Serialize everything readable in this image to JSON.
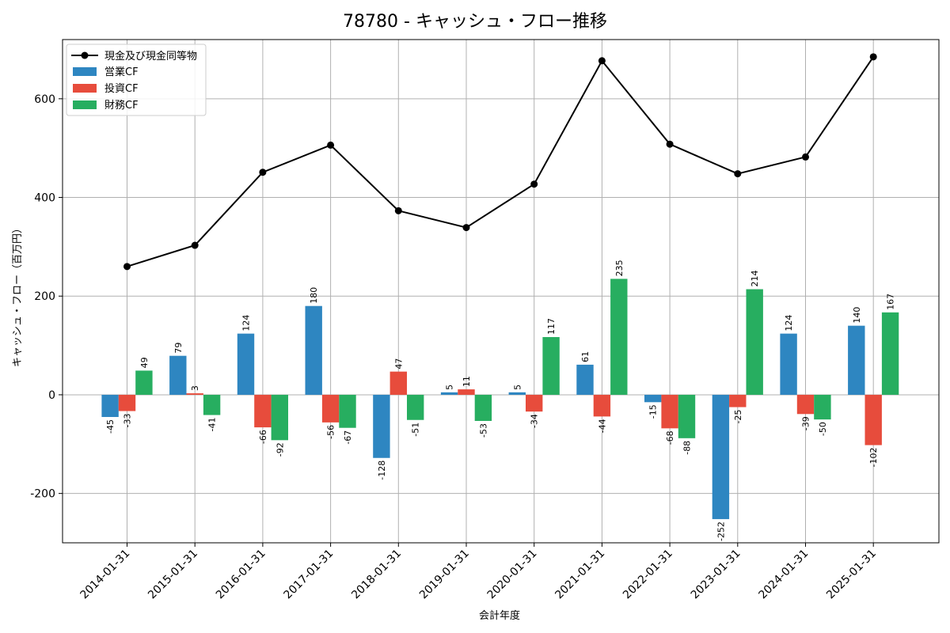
{
  "title": "78780 - キャッシュ・フロー推移",
  "colors": {
    "operating": "#2e86c1",
    "investing": "#e74c3c",
    "financing": "#27ae60",
    "cash": "#000000"
  },
  "chart_data": {
    "type": "bar",
    "title": "78780 - キャッシュ・フロー推移",
    "xlabel": "会計年度",
    "ylabel": "キャッシュ・フロー（百万円）",
    "ylim": [
      -300,
      720
    ],
    "yticks": [
      -200,
      0,
      200,
      400,
      600
    ],
    "grid": true,
    "legend_position": "top-left",
    "categories": [
      "2014-01-31",
      "2015-01-31",
      "2016-01-31",
      "2017-01-31",
      "2018-01-31",
      "2019-01-31",
      "2020-01-31",
      "2021-01-31",
      "2022-01-31",
      "2023-01-31",
      "2024-01-31",
      "2025-01-31"
    ],
    "series": [
      {
        "name": "営業CF",
        "type": "bar",
        "color": "#2e86c1",
        "values": [
          -45,
          79,
          124,
          180,
          -128,
          5,
          5,
          61,
          -15,
          -252,
          124,
          140
        ]
      },
      {
        "name": "投資CF",
        "type": "bar",
        "color": "#e74c3c",
        "values": [
          -33,
          3,
          -66,
          -56,
          47,
          11,
          -34,
          -44,
          -68,
          -25,
          -39,
          -102
        ]
      },
      {
        "name": "財務CF",
        "type": "bar",
        "color": "#27ae60",
        "values": [
          49,
          -41,
          -92,
          -67,
          -51,
          -53,
          117,
          235,
          -88,
          214,
          -50,
          167
        ]
      },
      {
        "name": "現金及び現金同等物",
        "type": "line",
        "color": "#000000",
        "values": [
          260,
          303,
          451,
          506,
          373,
          339,
          427,
          677,
          508,
          448,
          482,
          685
        ]
      }
    ]
  }
}
